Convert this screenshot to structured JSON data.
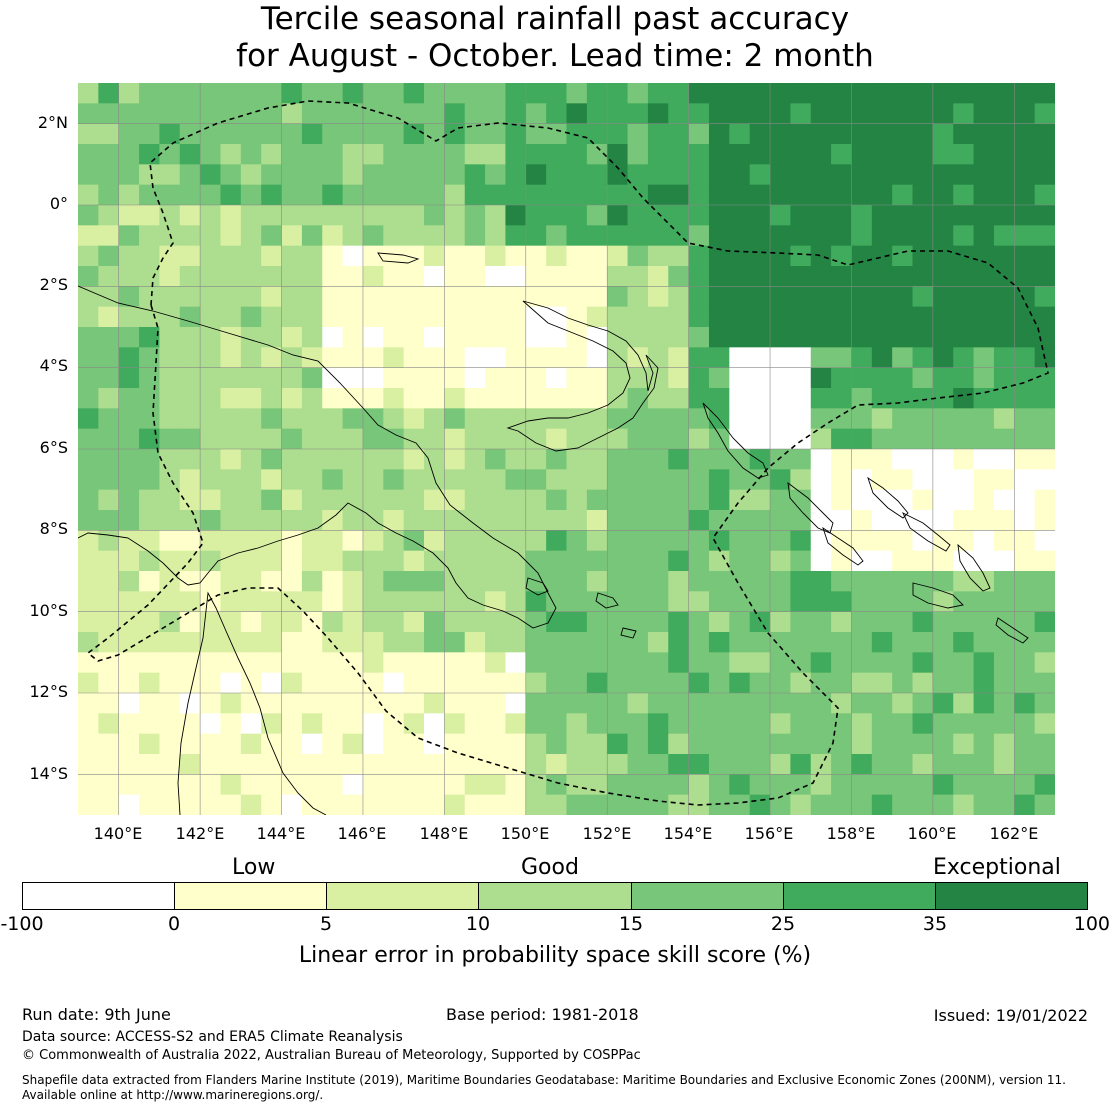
{
  "title": {
    "line1": "Tercile seasonal rainfall past accuracy",
    "line2": "for August - October. Lead time: 2 month"
  },
  "map": {
    "lat_labels": [
      "2°N",
      "0°",
      "2°S",
      "4°S",
      "6°S",
      "8°S",
      "10°S",
      "12°S",
      "14°S"
    ],
    "lon_labels": [
      "140°E",
      "142°E",
      "144°E",
      "146°E",
      "148°E",
      "150°E",
      "152°E",
      "154°E",
      "156°E",
      "158°E",
      "160°E",
      "162°E"
    ],
    "extent": {
      "lon": [
        139,
        163
      ],
      "lat": [
        -15,
        3
      ]
    },
    "gridlines": true,
    "skill_colors": [
      "#ffffff",
      "#ffffcc",
      "#d9f0a3",
      "#addd8e",
      "#78c679",
      "#41ab5d",
      "#238443"
    ]
  },
  "legend": {
    "category_labels": {
      "low": "Low",
      "good": "Good",
      "exceptional": "Exceptional"
    },
    "ticks": [
      "-100",
      "0",
      "5",
      "10",
      "15",
      "25",
      "35",
      "100"
    ],
    "colors": [
      "#ffffff",
      "#ffffcc",
      "#d9f0a3",
      "#addd8e",
      "#78c679",
      "#41ab5d",
      "#238443"
    ],
    "title": "Linear error in probability space skill score (%)"
  },
  "footer": {
    "run_date": "Run date: 9th June",
    "base_period": "Base period: 1981-2018",
    "issued": "Issued: 19/01/2022",
    "data_source": "Data source: ACCESS-S2 and ERA5 Climate Reanalysis",
    "copyright": "© Commonwealth of Australia 2022, Australian Bureau of Meteorology, Supported by COSPPac",
    "shapefile_line1": "Shapefile data extracted from Flanders Marine Institute (2019), Maritime Boundaries Geodatabase: Maritime Boundaries and Exclusive Economic Zones (200NM), version 11.",
    "shapefile_line2": "Available online at http://www.marineregions.org/."
  }
}
